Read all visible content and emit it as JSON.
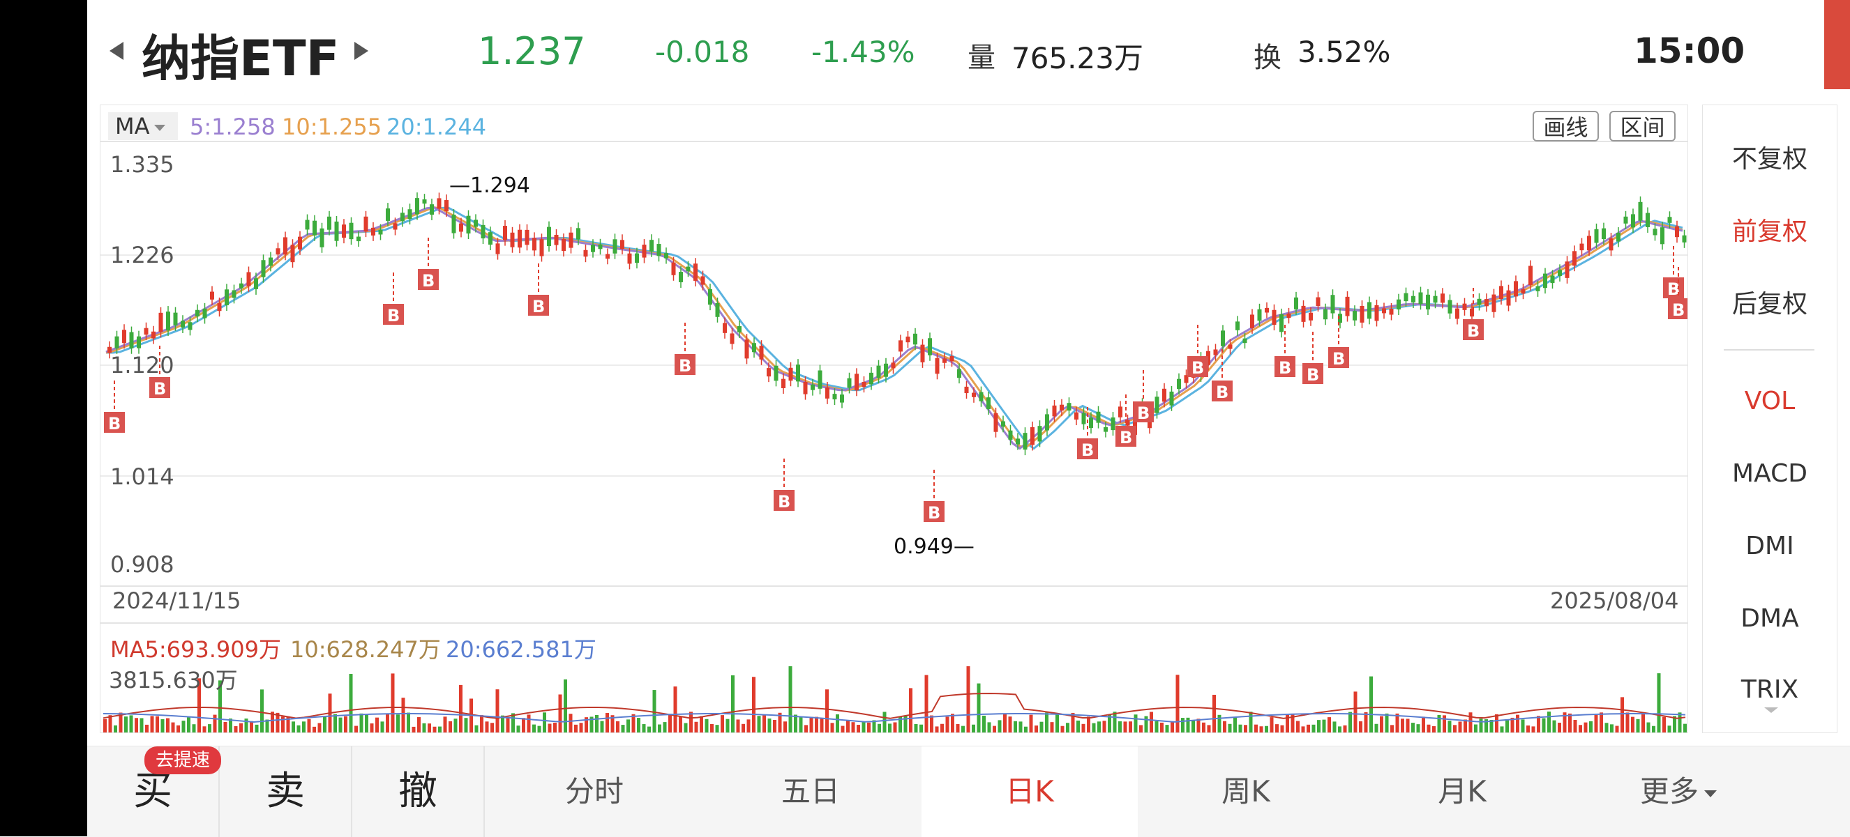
{
  "header": {
    "title": "纳指ETF",
    "price": "1.237",
    "change": "-0.018",
    "change_pct": "-1.43%",
    "volume_label": "量",
    "volume": "765.23万",
    "turnover_label": "换",
    "turnover": "3.52%",
    "time": "15:00",
    "price_color": "#2e9e4f"
  },
  "chart": {
    "ma_dropdown": "MA",
    "ma5": "5:1.258",
    "ma10": "10:1.255",
    "ma20": "20:1.244",
    "ma5_color": "#9a7fd0",
    "ma10_color": "#e6a04e",
    "ma20_color": "#5bb3e0",
    "draw_line_btn": "画线",
    "range_btn": "区间",
    "y_ticks": [
      "1.335",
      "1.226",
      "1.120",
      "1.014",
      "0.908"
    ],
    "high_label": "1.294",
    "low_label": "0.949",
    "start_date": "2024/11/15",
    "end_date": "2025/08/04",
    "buy_marker": "B",
    "up_color": "#e03b2c",
    "down_color": "#3cab3c"
  },
  "volume": {
    "ma5": "MA5:693.909万",
    "ma10": "10:628.247万",
    "ma20": "20:662.581万",
    "max_label": "3815.630万"
  },
  "right_panel": {
    "adj_none": "不复权",
    "adj_forward": "前复权",
    "adj_backward": "后复权",
    "indicators": [
      "VOL",
      "MACD",
      "DMI",
      "DMA",
      "TRIX"
    ]
  },
  "bottom_bar": {
    "buy": "买",
    "sell": "卖",
    "cancel": "撤",
    "speed_badge": "去提速",
    "tabs": [
      "分时",
      "五日",
      "日K",
      "周K",
      "月K",
      "更多"
    ]
  }
}
